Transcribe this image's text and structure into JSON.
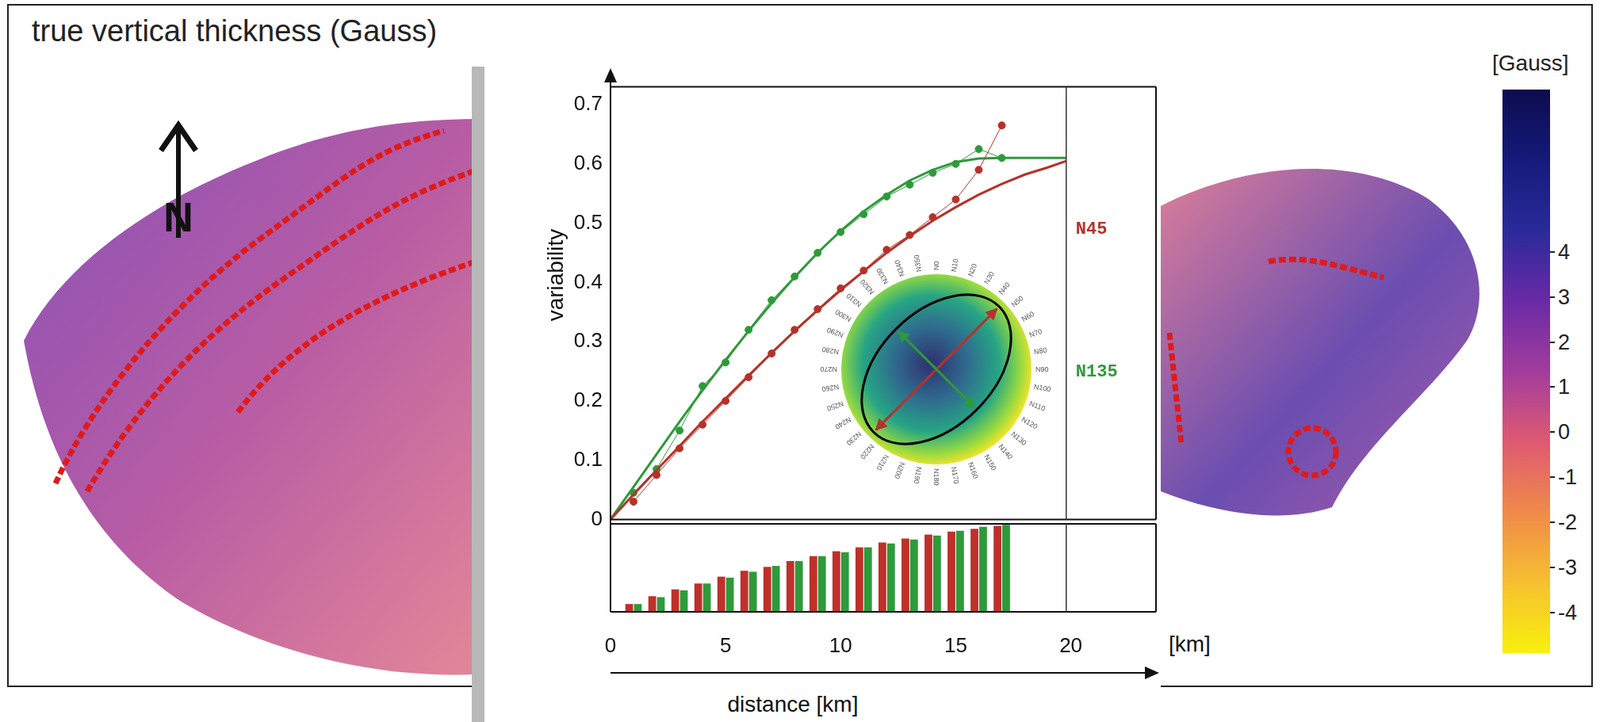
{
  "title": "true vertical thickness (Gauss)",
  "north_label": "N",
  "colorbar": {
    "label": "[Gauss]",
    "range": [
      -4.9,
      7.6
    ],
    "ticks": [
      4,
      3,
      2,
      1,
      0,
      -1,
      -2,
      -3,
      -4
    ],
    "colors": [
      "#0d0b4f",
      "#151a7a",
      "#2a2a9a",
      "#6a2aa6",
      "#a23c9c",
      "#de5a72",
      "#f08a4a",
      "#f6c030",
      "#f8f00c"
    ]
  },
  "chart_data": [
    {
      "type": "line",
      "x_label": "distance [km]",
      "x_unit": "[km]",
      "y_label": "variability",
      "xlim": [
        0,
        23.7
      ],
      "ylim": [
        0,
        0.73
      ],
      "yticks": [
        0,
        0.1,
        0.2,
        0.3,
        0.4,
        0.5,
        0.6,
        0.7
      ],
      "tick_labels": "y",
      "grid": false,
      "marker": "circle",
      "range_line": 19.8,
      "series": [
        {
          "name": "N45",
          "color": "#b5322a",
          "azimuth": 45,
          "x": [
            0,
            1,
            2,
            3,
            4,
            5,
            6,
            7,
            8,
            9,
            10,
            11,
            12,
            13,
            14,
            15,
            16,
            17,
            18,
            19,
            19.8
          ],
          "values": [
            0,
            0.042,
            0.083,
            0.124,
            0.165,
            0.204,
            0.243,
            0.281,
            0.318,
            0.353,
            0.387,
            0.419,
            0.45,
            0.478,
            0.504,
            0.527,
            0.548,
            0.566,
            0.582,
            0.594,
            0.605
          ],
          "experimental": {
            "x": [
              1,
              2,
              3,
              4,
              5,
              6,
              7,
              8,
              9,
              10,
              11,
              12,
              13,
              14,
              15,
              16,
              17
            ],
            "values": [
              0.03,
              0.075,
              0.12,
              0.16,
              0.2,
              0.24,
              0.28,
              0.32,
              0.355,
              0.39,
              0.42,
              0.455,
              0.48,
              0.51,
              0.54,
              0.59,
              0.665
            ]
          }
        },
        {
          "name": "N135",
          "color": "#2e9a3a",
          "azimuth": 135,
          "x": [
            0,
            1,
            2,
            3,
            4,
            5,
            6,
            7,
            8,
            9,
            10,
            11,
            12,
            13,
            14,
            15,
            16,
            17,
            19.8
          ],
          "values": [
            0,
            0.055,
            0.11,
            0.165,
            0.218,
            0.269,
            0.318,
            0.365,
            0.409,
            0.45,
            0.487,
            0.52,
            0.548,
            0.572,
            0.59,
            0.603,
            0.609,
            0.61,
            0.61
          ],
          "experimental": {
            "x": [
              1,
              2,
              3,
              4,
              5,
              6,
              7,
              8,
              9,
              10,
              11,
              12,
              13,
              14,
              15,
              16,
              17
            ],
            "values": [
              0.045,
              0.085,
              0.15,
              0.225,
              0.265,
              0.32,
              0.37,
              0.41,
              0.45,
              0.485,
              0.515,
              0.545,
              0.565,
              0.585,
              0.6,
              0.625,
              0.61
            ]
          }
        }
      ],
      "rose": {
        "labels": [
          "N0",
          "N10",
          "N20",
          "N30",
          "N40",
          "N50",
          "N60",
          "N70",
          "N80",
          "N90",
          "N100",
          "N110",
          "N120",
          "N130",
          "N140",
          "N150",
          "N160",
          "N170",
          "N180",
          "N190",
          "N200",
          "N210",
          "N220",
          "N230",
          "N240",
          "N250",
          "N260",
          "N270",
          "N280",
          "N290",
          "N300",
          "N310",
          "N320",
          "N330",
          "N340",
          "N350"
        ]
      }
    },
    {
      "type": "bar",
      "xlim": [
        0,
        23.7
      ],
      "xticks": [
        0,
        5,
        10,
        15,
        20
      ],
      "ylim": [
        0,
        90
      ],
      "tick_labels": "x",
      "grid": false,
      "x": [
        1,
        2,
        3,
        4,
        5,
        6,
        7,
        8,
        9,
        10,
        11,
        12,
        13,
        14,
        15,
        16,
        17
      ],
      "series": [
        {
          "name": "N45",
          "color": "#c0302a",
          "values": [
            8,
            16,
            23,
            29,
            36,
            42,
            46,
            52,
            57,
            62,
            66,
            71,
            75,
            79,
            82,
            85,
            88
          ]
        },
        {
          "name": "N135",
          "color": "#2e9a3a",
          "values": [
            8,
            15,
            22,
            29,
            35,
            41,
            47,
            52,
            57,
            61,
            66,
            70,
            74,
            78,
            83,
            87,
            89
          ]
        }
      ]
    }
  ]
}
